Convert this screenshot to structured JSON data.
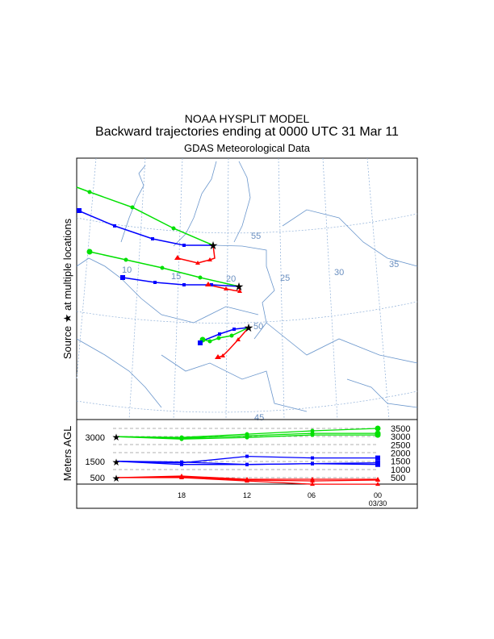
{
  "header": {
    "model": "NOAA HYSPLIT MODEL",
    "title": "Backward trajectories ending at 0000 UTC 31 Mar 11",
    "subtitle": "GDAS Meteorological Data"
  },
  "chart_data": {
    "type": "line",
    "title": "Backward trajectories ending at 0000 UTC 31 Mar 11",
    "map": {
      "ylabel": "Source ★ at multiple locations",
      "longitude_labels": [
        "10",
        "15",
        "20",
        "25",
        "30",
        "35"
      ],
      "latitude_labels": [
        "55",
        "50",
        "45"
      ]
    },
    "height_panel": {
      "ylabel": "Meters AGL",
      "left_ticks": [
        "3000",
        "1500",
        "500"
      ],
      "right_ticks": [
        "3500",
        "3000",
        "2500",
        "2000",
        "1500",
        "1000",
        "500"
      ],
      "x_ticks": [
        "18",
        "12",
        "06",
        "00"
      ],
      "x_date": "03/30",
      "series": [
        {
          "name": "3000 m",
          "color": "#00e000",
          "hours": [
            0,
            6,
            12,
            18,
            24
          ],
          "heights": [
            [
              3000,
              2850,
              2950,
              3100,
              3100
            ],
            [
              3000,
              2950,
              3150,
              3350,
              3500
            ],
            [
              3000,
              2900,
              3050,
              3200,
              3200
            ]
          ]
        },
        {
          "name": "1500 m",
          "color": "#0000ff",
          "hours": [
            0,
            6,
            12,
            18,
            24
          ],
          "heights": [
            [
              1500,
              1300,
              1300,
              1350,
              1400
            ],
            [
              1500,
              1400,
              1800,
              1700,
              1700
            ],
            [
              1500,
              1450,
              1300,
              1350,
              1300
            ]
          ]
        },
        {
          "name": "500 m",
          "color": "#ff0000",
          "hours": [
            0,
            6,
            12,
            18,
            24
          ],
          "heights": [
            [
              500,
              500,
              300,
              100,
              100
            ],
            [
              500,
              600,
              400,
              400,
              400
            ],
            [
              500,
              550,
              350,
              300,
              350
            ]
          ]
        }
      ]
    }
  }
}
